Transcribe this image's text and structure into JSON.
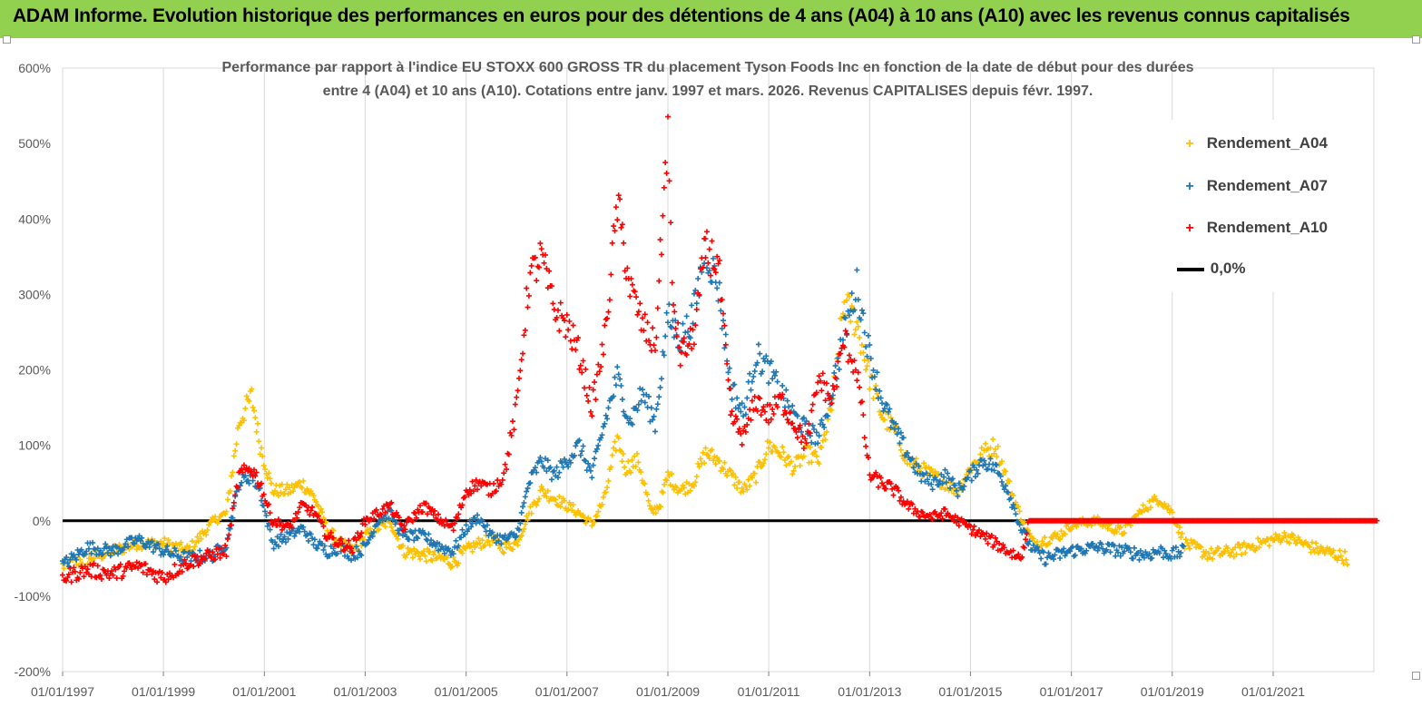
{
  "banner": {
    "title": "ADAM Informe. Evolution historique des performances en euros pour des détentions de 4 ans (A04) à 10 ans (A10) avec les revenus connus capitalisés",
    "background": "#92d050"
  },
  "chart_data": {
    "type": "scatter",
    "title_line1": "Performance par rapport à l'indice EU STOXX 600 GROSS TR  du placement Tyson Foods Inc en fonction de la date de début pour des durées",
    "title_line2": "entre 4 (A04) et 10 ans (A10). Cotations entre janv. 1997 et mars. 2026. Revenus CAPITALISES depuis févr. 1997.",
    "xlabel": "",
    "ylabel": "",
    "x_ticks": [
      "01/01/1997",
      "01/01/1999",
      "01/01/2001",
      "01/01/2003",
      "01/01/2005",
      "01/01/2007",
      "01/01/2009",
      "01/01/2011",
      "01/01/2013",
      "01/01/2015",
      "01/01/2017",
      "01/01/2019",
      "01/01/2021"
    ],
    "xlim": [
      "1997-01-01",
      "2023-03-01"
    ],
    "y_ticks": [
      "600%",
      "500%",
      "400%",
      "300%",
      "200%",
      "100%",
      "0%",
      "-100%",
      "-200%"
    ],
    "ylim": [
      -200,
      600
    ],
    "y_unit": "%",
    "grid": "vertical gridlines at each x tick",
    "legend_position": "top-right",
    "series": [
      {
        "name": "Rendement_A04",
        "color": "#ffc000",
        "marker": "+",
        "points": [
          [
            "1997-01-01",
            -60
          ],
          [
            "1997-07-01",
            -50
          ],
          [
            "1998-01-01",
            -40
          ],
          [
            "1998-07-01",
            -30
          ],
          [
            "1999-01-01",
            -30
          ],
          [
            "1999-07-01",
            -40
          ],
          [
            "2000-01-01",
            0
          ],
          [
            "2000-04-01",
            10
          ],
          [
            "2000-07-01",
            130
          ],
          [
            "2000-10-01",
            165
          ],
          [
            "2000-12-01",
            100
          ],
          [
            "2001-03-01",
            40
          ],
          [
            "2001-07-01",
            40
          ],
          [
            "2001-10-01",
            50
          ],
          [
            "2002-01-01",
            30
          ],
          [
            "2002-04-01",
            -10
          ],
          [
            "2002-07-01",
            -30
          ],
          [
            "2002-10-01",
            -40
          ],
          [
            "2003-01-01",
            -20
          ],
          [
            "2003-07-01",
            0
          ],
          [
            "2003-10-01",
            -40
          ],
          [
            "2004-03-01",
            -45
          ],
          [
            "2004-07-01",
            -50
          ],
          [
            "2004-10-01",
            -55
          ],
          [
            "2005-01-01",
            -40
          ],
          [
            "2005-04-01",
            -30
          ],
          [
            "2005-07-01",
            -25
          ],
          [
            "2005-10-01",
            -35
          ],
          [
            "2006-01-01",
            -30
          ],
          [
            "2006-04-01",
            10
          ],
          [
            "2006-07-01",
            40
          ],
          [
            "2006-10-01",
            30
          ],
          [
            "2007-01-01",
            20
          ],
          [
            "2007-04-01",
            10
          ],
          [
            "2007-07-01",
            -5
          ],
          [
            "2007-10-01",
            30
          ],
          [
            "2008-01-01",
            110
          ],
          [
            "2008-03-01",
            70
          ],
          [
            "2008-06-01",
            80
          ],
          [
            "2008-09-01",
            10
          ],
          [
            "2008-11-01",
            20
          ],
          [
            "2009-01-01",
            60
          ],
          [
            "2009-04-01",
            40
          ],
          [
            "2009-07-01",
            50
          ],
          [
            "2009-10-01",
            90
          ],
          [
            "2010-01-01",
            80
          ],
          [
            "2010-04-01",
            60
          ],
          [
            "2010-07-01",
            40
          ],
          [
            "2010-10-01",
            60
          ],
          [
            "2011-01-01",
            100
          ],
          [
            "2011-04-01",
            90
          ],
          [
            "2011-07-01",
            70
          ],
          [
            "2011-10-01",
            90
          ],
          [
            "2012-01-01",
            80
          ],
          [
            "2012-04-01",
            150
          ],
          [
            "2012-07-01",
            290
          ],
          [
            "2012-10-01",
            260
          ],
          [
            "2013-01-01",
            190
          ],
          [
            "2013-04-01",
            140
          ],
          [
            "2013-07-01",
            120
          ],
          [
            "2013-10-01",
            80
          ],
          [
            "2014-01-01",
            70
          ],
          [
            "2014-04-01",
            60
          ],
          [
            "2014-07-01",
            50
          ],
          [
            "2014-10-01",
            40
          ],
          [
            "2015-01-01",
            70
          ],
          [
            "2015-04-01",
            90
          ],
          [
            "2015-07-01",
            100
          ],
          [
            "2015-10-01",
            50
          ],
          [
            "2016-01-01",
            5
          ],
          [
            "2016-04-01",
            -30
          ],
          [
            "2016-07-01",
            -25
          ],
          [
            "2016-10-01",
            -20
          ],
          [
            "2017-01-01",
            -5
          ],
          [
            "2017-07-01",
            0
          ],
          [
            "2018-01-01",
            -15
          ],
          [
            "2018-07-01",
            20
          ],
          [
            "2018-10-01",
            30
          ],
          [
            "2019-01-01",
            10
          ],
          [
            "2019-04-01",
            -30
          ],
          [
            "2019-10-01",
            -45
          ],
          [
            "2020-04-01",
            -40
          ],
          [
            "2020-10-01",
            -30
          ],
          [
            "2021-04-01",
            -20
          ],
          [
            "2021-10-01",
            -35
          ],
          [
            "2022-04-01",
            -45
          ],
          [
            "2022-07-01",
            -50
          ]
        ]
      },
      {
        "name": "Rendement_A07",
        "color": "#1f77b4",
        "marker": "+",
        "points": [
          [
            "1997-01-01",
            -60
          ],
          [
            "1997-07-01",
            -35
          ],
          [
            "1998-01-01",
            -40
          ],
          [
            "1998-07-01",
            -25
          ],
          [
            "1999-01-01",
            -40
          ],
          [
            "1999-07-01",
            -50
          ],
          [
            "2000-01-01",
            -45
          ],
          [
            "2000-04-01",
            -30
          ],
          [
            "2000-07-01",
            50
          ],
          [
            "2000-10-01",
            60
          ],
          [
            "2000-12-01",
            40
          ],
          [
            "2001-03-01",
            -30
          ],
          [
            "2001-07-01",
            -20
          ],
          [
            "2001-10-01",
            -10
          ],
          [
            "2002-01-01",
            -30
          ],
          [
            "2002-04-01",
            -40
          ],
          [
            "2002-07-01",
            -35
          ],
          [
            "2002-10-01",
            -45
          ],
          [
            "2003-01-01",
            -35
          ],
          [
            "2003-04-01",
            0
          ],
          [
            "2003-07-01",
            10
          ],
          [
            "2003-10-01",
            -20
          ],
          [
            "2004-03-01",
            -20
          ],
          [
            "2004-07-01",
            -35
          ],
          [
            "2004-10-01",
            -40
          ],
          [
            "2005-01-01",
            -10
          ],
          [
            "2005-04-01",
            5
          ],
          [
            "2005-07-01",
            -20
          ],
          [
            "2005-10-01",
            -25
          ],
          [
            "2006-01-01",
            -20
          ],
          [
            "2006-04-01",
            50
          ],
          [
            "2006-07-01",
            80
          ],
          [
            "2006-10-01",
            60
          ],
          [
            "2007-01-01",
            80
          ],
          [
            "2007-04-01",
            100
          ],
          [
            "2007-07-01",
            60
          ],
          [
            "2007-10-01",
            130
          ],
          [
            "2008-01-01",
            190
          ],
          [
            "2008-04-01",
            130
          ],
          [
            "2008-07-01",
            170
          ],
          [
            "2008-10-01",
            130
          ],
          [
            "2009-01-01",
            270
          ],
          [
            "2009-04-01",
            240
          ],
          [
            "2009-07-01",
            270
          ],
          [
            "2009-10-01",
            360
          ],
          [
            "2010-01-01",
            310
          ],
          [
            "2010-04-01",
            180
          ],
          [
            "2010-07-01",
            140
          ],
          [
            "2010-10-01",
            220
          ],
          [
            "2011-01-01",
            200
          ],
          [
            "2011-04-01",
            170
          ],
          [
            "2011-07-01",
            140
          ],
          [
            "2011-10-01",
            120
          ],
          [
            "2012-01-01",
            110
          ],
          [
            "2012-04-01",
            170
          ],
          [
            "2012-07-01",
            250
          ],
          [
            "2012-10-01",
            310
          ],
          [
            "2013-01-01",
            220
          ],
          [
            "2013-04-01",
            160
          ],
          [
            "2013-07-01",
            120
          ],
          [
            "2013-10-01",
            90
          ],
          [
            "2014-01-01",
            60
          ],
          [
            "2014-04-01",
            50
          ],
          [
            "2014-07-01",
            60
          ],
          [
            "2014-10-01",
            40
          ],
          [
            "2015-01-01",
            60
          ],
          [
            "2015-04-01",
            80
          ],
          [
            "2015-07-01",
            70
          ],
          [
            "2015-10-01",
            40
          ],
          [
            "2016-01-01",
            -10
          ],
          [
            "2016-04-01",
            -40
          ],
          [
            "2016-07-01",
            -50
          ],
          [
            "2016-10-01",
            -45
          ],
          [
            "2017-01-01",
            -40
          ],
          [
            "2017-07-01",
            -35
          ],
          [
            "2018-01-01",
            -40
          ],
          [
            "2018-07-01",
            -45
          ],
          [
            "2018-10-01",
            -40
          ],
          [
            "2019-01-01",
            -45
          ],
          [
            "2019-04-01",
            -40
          ]
        ]
      },
      {
        "name": "Rendement_A10",
        "color": "#ff0000",
        "marker": "+",
        "points": [
          [
            "1997-01-01",
            -75
          ],
          [
            "1997-07-01",
            -65
          ],
          [
            "1998-01-01",
            -70
          ],
          [
            "1998-07-01",
            -60
          ],
          [
            "1999-01-01",
            -75
          ],
          [
            "1999-07-01",
            -55
          ],
          [
            "2000-01-01",
            -45
          ],
          [
            "2000-04-01",
            -40
          ],
          [
            "2000-07-01",
            60
          ],
          [
            "2000-10-01",
            70
          ],
          [
            "2000-12-01",
            50
          ],
          [
            "2001-03-01",
            0
          ],
          [
            "2001-07-01",
            -10
          ],
          [
            "2001-10-01",
            20
          ],
          [
            "2002-01-01",
            10
          ],
          [
            "2002-04-01",
            -20
          ],
          [
            "2002-07-01",
            -30
          ],
          [
            "2002-10-01",
            -35
          ],
          [
            "2003-01-01",
            0
          ],
          [
            "2003-07-01",
            20
          ],
          [
            "2003-10-01",
            -10
          ],
          [
            "2004-03-01",
            20
          ],
          [
            "2004-07-01",
            0
          ],
          [
            "2004-10-01",
            -10
          ],
          [
            "2005-01-01",
            40
          ],
          [
            "2005-04-01",
            50
          ],
          [
            "2005-07-01",
            40
          ],
          [
            "2005-10-01",
            60
          ],
          [
            "2006-01-01",
            150
          ],
          [
            "2006-04-01",
            320
          ],
          [
            "2006-07-01",
            350
          ],
          [
            "2006-10-01",
            280
          ],
          [
            "2007-01-01",
            260
          ],
          [
            "2007-04-01",
            220
          ],
          [
            "2007-07-01",
            150
          ],
          [
            "2007-10-01",
            240
          ],
          [
            "2008-01-01",
            420
          ],
          [
            "2008-04-01",
            310
          ],
          [
            "2008-07-01",
            260
          ],
          [
            "2008-10-01",
            230
          ],
          [
            "2009-01-01",
            520
          ],
          [
            "2009-02-01",
            300
          ],
          [
            "2009-04-01",
            220
          ],
          [
            "2009-07-01",
            240
          ],
          [
            "2009-10-01",
            360
          ],
          [
            "2010-01-01",
            340
          ],
          [
            "2010-04-01",
            140
          ],
          [
            "2010-07-01",
            110
          ],
          [
            "2010-10-01",
            160
          ],
          [
            "2011-01-01",
            140
          ],
          [
            "2011-04-01",
            160
          ],
          [
            "2011-07-01",
            130
          ],
          [
            "2011-10-01",
            100
          ],
          [
            "2012-01-01",
            190
          ],
          [
            "2012-04-01",
            160
          ],
          [
            "2012-07-01",
            240
          ],
          [
            "2012-10-01",
            200
          ],
          [
            "2013-01-01",
            60
          ],
          [
            "2013-04-01",
            50
          ],
          [
            "2013-07-01",
            40
          ],
          [
            "2013-10-01",
            20
          ],
          [
            "2014-01-01",
            10
          ],
          [
            "2014-04-01",
            5
          ],
          [
            "2014-07-01",
            10
          ],
          [
            "2014-10-01",
            0
          ],
          [
            "2015-01-01",
            -10
          ],
          [
            "2015-04-01",
            -20
          ],
          [
            "2015-07-01",
            -30
          ],
          [
            "2015-10-01",
            -40
          ],
          [
            "2016-01-01",
            -50
          ],
          [
            "2016-03-01",
            0
          ],
          [
            "2017-01-01",
            0
          ],
          [
            "2018-01-01",
            0
          ],
          [
            "2019-01-01",
            0
          ],
          [
            "2020-01-01",
            0
          ],
          [
            "2021-01-01",
            0
          ],
          [
            "2022-01-01",
            0
          ],
          [
            "2023-02-01",
            0
          ]
        ]
      }
    ],
    "reference_line": {
      "name": "0,0%",
      "value": 0,
      "color": "#000000"
    }
  }
}
